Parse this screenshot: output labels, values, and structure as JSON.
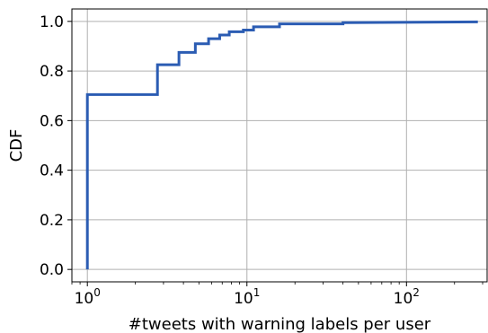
{
  "chart_data": {
    "type": "line",
    "subtype": "step-cdf",
    "xlabel": "#tweets with warning labels per user",
    "ylabel": "CDF",
    "xscale": "log",
    "xlim": [
      0.8,
      320
    ],
    "ylim": [
      -0.05,
      1.05
    ],
    "grid": true,
    "line_color": "#2b5cb3",
    "x_ticks": [
      {
        "value": 1,
        "base": "10",
        "exp": "0"
      },
      {
        "value": 10,
        "base": "10",
        "exp": "1"
      },
      {
        "value": 100,
        "base": "10",
        "exp": "2"
      }
    ],
    "y_ticks": [
      {
        "value": 0.0,
        "label": "0.0"
      },
      {
        "value": 0.2,
        "label": "0.2"
      },
      {
        "value": 0.4,
        "label": "0.4"
      },
      {
        "value": 0.6,
        "label": "0.6"
      },
      {
        "value": 0.8,
        "label": "0.8"
      },
      {
        "value": 1.0,
        "label": "1.0"
      }
    ],
    "series": [
      {
        "points": [
          [
            1,
            0.0
          ],
          [
            1,
            0.705
          ],
          [
            2.75,
            0.705
          ],
          [
            2.75,
            0.825
          ],
          [
            3.75,
            0.825
          ],
          [
            3.75,
            0.875
          ],
          [
            4.75,
            0.875
          ],
          [
            4.75,
            0.91
          ],
          [
            5.75,
            0.91
          ],
          [
            5.75,
            0.93
          ],
          [
            6.75,
            0.93
          ],
          [
            6.75,
            0.945
          ],
          [
            7.75,
            0.945
          ],
          [
            7.75,
            0.958
          ],
          [
            9.5,
            0.958
          ],
          [
            9.5,
            0.965
          ],
          [
            11,
            0.965
          ],
          [
            11,
            0.978
          ],
          [
            16,
            0.978
          ],
          [
            16,
            0.99
          ],
          [
            40,
            0.99
          ],
          [
            40,
            0.995
          ],
          [
            280,
            0.998
          ]
        ]
      }
    ]
  }
}
